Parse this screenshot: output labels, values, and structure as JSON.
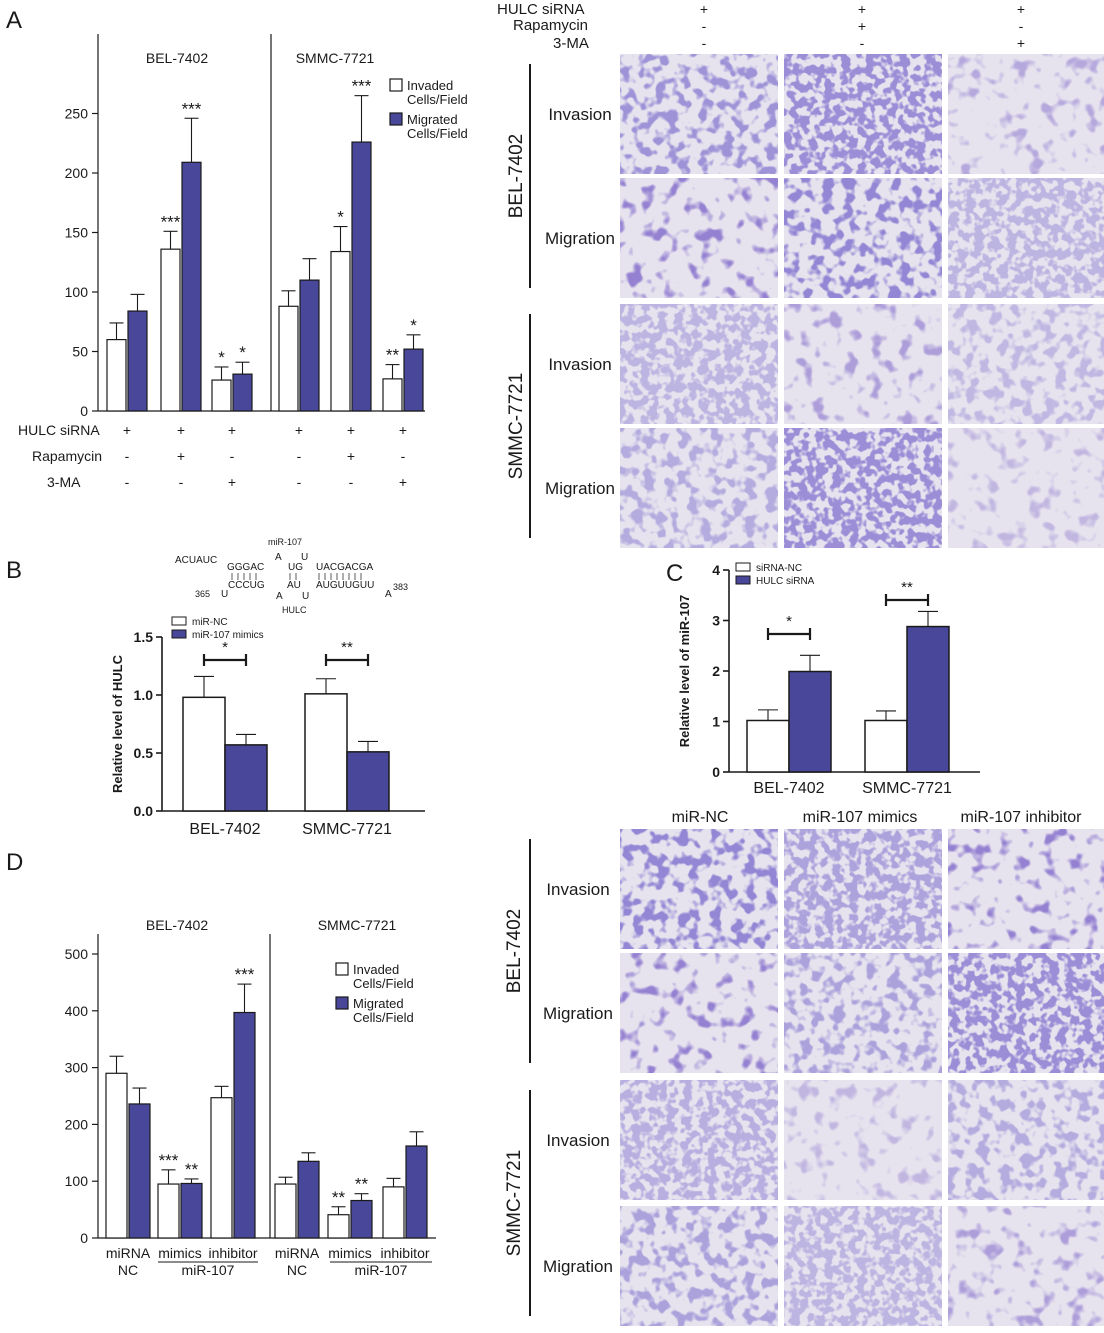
{
  "panel_labels": [
    "A",
    "B",
    "C",
    "D"
  ],
  "colors": {
    "open_bar": "#ffffff",
    "filled_bar": "#49479a",
    "axis": "#1a1a1a",
    "stain": "#4a3ea8",
    "stain_light": "#7a6cc2",
    "stain_bg": "#e6e3ee"
  },
  "panel_a_micro": {
    "conditions": [
      {
        "label": "HULC siRNA",
        "values": [
          "+",
          "+",
          "+"
        ]
      },
      {
        "label": "Rapamycin",
        "values": [
          "-",
          "+",
          "-"
        ]
      },
      {
        "label": "3-MA",
        "values": [
          "-",
          "-",
          "+"
        ]
      }
    ],
    "groups": [
      "BEL-7402",
      "SMMC-7721"
    ],
    "rows": [
      "Invasion",
      "Migration",
      "Invasion",
      "Migration"
    ]
  },
  "panel_d_micro": {
    "columns": [
      "miR-NC",
      "miR-107 mimics",
      "miR-107 inhibitor"
    ],
    "groups": [
      "BEL-7402",
      "SMMC-7721"
    ],
    "rows": [
      "Invasion",
      "Migration",
      "Invasion",
      "Migration"
    ]
  },
  "panel_b_structure": {
    "top_label": "miR-107",
    "top_seq_left": "ACUAUC",
    "top_seq_mid": "GGGAC",
    "top_a": "A",
    "top_u": "U",
    "top_ug": "UG",
    "top_seq_right": "UACGACGA",
    "bottom_seq_mid": "CCCUG",
    "bottom_au": "AU",
    "bottom_seq_right": "AUGUUGUU",
    "bottom_u": "U",
    "bottom_a": "A",
    "bottom_u2": "U",
    "bottom_a2": "A",
    "pos_left": "365",
    "pos_right": "383",
    "bottom_label": "HULC"
  },
  "chart_data": [
    {
      "id": "A-chart",
      "type": "bar",
      "facets": [
        "BEL-7402",
        "SMMC-7721"
      ],
      "ylim": [
        0,
        300
      ],
      "yticks": [
        0,
        50,
        100,
        150,
        200,
        250
      ],
      "legend": [
        "Invaded\nCells/Field",
        "Migrated\nCells/Field"
      ],
      "legend_placement": "top-right",
      "conditions": [
        {
          "label": "HULC siRNA",
          "values": [
            "+",
            "+",
            "+",
            "+",
            "+",
            "+"
          ]
        },
        {
          "label": "Rapamycin",
          "values": [
            "-",
            "+",
            "-",
            "-",
            "+",
            "-"
          ]
        },
        {
          "label": "3-MA",
          "values": [
            "-",
            "-",
            "+",
            "-",
            "-",
            "+"
          ]
        }
      ],
      "series": [
        {
          "name": "Invaded Cells/Field",
          "values": [
            60,
            136,
            26,
            88,
            134,
            27
          ],
          "errors": [
            14,
            15,
            11,
            13,
            21,
            12
          ],
          "sig": [
            "",
            "***",
            "*",
            "",
            "*",
            "**"
          ]
        },
        {
          "name": "Migrated Cells/Field",
          "values": [
            84,
            209,
            31,
            110,
            226,
            52
          ],
          "errors": [
            14,
            37,
            10,
            18,
            39,
            12
          ],
          "sig": [
            "",
            "***",
            "*",
            "",
            "***",
            "*"
          ]
        }
      ]
    },
    {
      "id": "B-chart",
      "type": "bar",
      "categories": [
        "BEL-7402",
        "SMMC-7721"
      ],
      "ylabel": "Relative level of HULC",
      "ylim": [
        0,
        1.5
      ],
      "yticks": [
        "0.0",
        "0.5",
        "1.0",
        "1.5"
      ],
      "legend_placement": "top-left",
      "series": [
        {
          "name": "miR-NC",
          "values": [
            0.98,
            1.01
          ],
          "errors": [
            0.18,
            0.13
          ]
        },
        {
          "name": "miR-107 mimics",
          "values": [
            0.57,
            0.51
          ],
          "errors": [
            0.09,
            0.09
          ]
        }
      ],
      "sig": [
        "*",
        "**"
      ]
    },
    {
      "id": "C-chart",
      "type": "bar",
      "categories": [
        "BEL-7402",
        "SMMC-7721"
      ],
      "ylabel": "Relative level of miR-107",
      "ylim": [
        0,
        4
      ],
      "yticks": [
        0,
        1,
        2,
        3,
        4
      ],
      "legend_placement": "top-left",
      "series": [
        {
          "name": "siRNA-NC",
          "values": [
            1.02,
            1.02
          ],
          "errors": [
            0.21,
            0.19
          ]
        },
        {
          "name": "HULC siRNA",
          "values": [
            1.99,
            2.88
          ],
          "errors": [
            0.32,
            0.3
          ]
        }
      ],
      "sig": [
        "*",
        "**"
      ]
    },
    {
      "id": "D-chart",
      "type": "bar",
      "facets": [
        "BEL-7402",
        "SMMC-7721"
      ],
      "ylim": [
        0,
        500
      ],
      "yticks": [
        0,
        100,
        200,
        300,
        400,
        500
      ],
      "legend": [
        "Invaded\nCells/Field",
        "Migrated\nCells/Field"
      ],
      "legend_placement": "top-right",
      "categories": [
        {
          "top": "miRNA",
          "bottom": "NC"
        },
        {
          "top": "mimics"
        },
        {
          "top": "inhibitor"
        },
        {
          "top": "miRNA",
          "bottom": "NC"
        },
        {
          "top": "mimics"
        },
        {
          "top": "inhibitor"
        }
      ],
      "group_label": "miR-107",
      "series": [
        {
          "name": "Invaded Cells/Field",
          "values": [
            290,
            95,
            247,
            95,
            41,
            90
          ],
          "errors": [
            30,
            25,
            20,
            12,
            14,
            15
          ],
          "sig": [
            "",
            "***",
            "",
            "",
            "**",
            ""
          ]
        },
        {
          "name": "Migrated Cells/Field",
          "values": [
            236,
            96,
            397,
            135,
            66,
            162
          ],
          "errors": [
            28,
            8,
            50,
            15,
            12,
            25
          ],
          "sig": [
            "",
            "**",
            "***",
            "",
            "**",
            ""
          ]
        }
      ]
    }
  ]
}
